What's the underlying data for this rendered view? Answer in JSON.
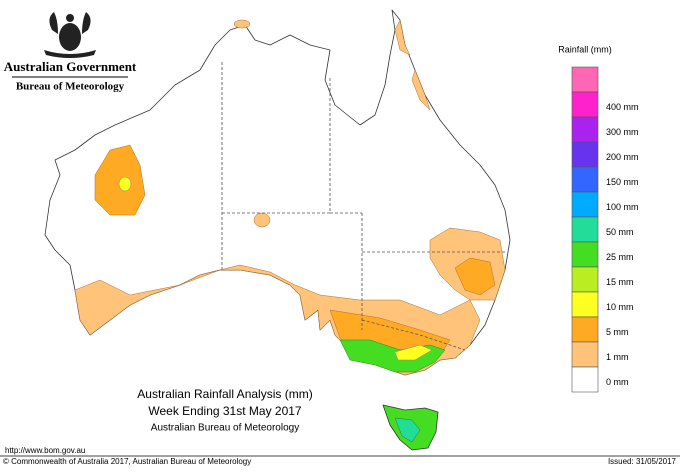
{
  "header": {
    "government": "Australian Government",
    "bureau": "Bureau of Meteorology"
  },
  "legend": {
    "title": "Rainfall (mm)",
    "items": [
      {
        "label": null,
        "color": "#ff66b3"
      },
      {
        "label": "400 mm",
        "color": "#ff22cc"
      },
      {
        "label": "300 mm",
        "color": "#aa22ee"
      },
      {
        "label": "200 mm",
        "color": "#6633ee"
      },
      {
        "label": "150 mm",
        "color": "#3366ff"
      },
      {
        "label": "100 mm",
        "color": "#00aaff"
      },
      {
        "label": "50 mm",
        "color": "#22dd99"
      },
      {
        "label": "25 mm",
        "color": "#44dd22"
      },
      {
        "label": "15 mm",
        "color": "#bbee22"
      },
      {
        "label": "10 mm",
        "color": "#ffff22"
      },
      {
        "label": "5 mm",
        "color": "#ffaa22"
      },
      {
        "label": "1 mm",
        "color": "#ffc37a"
      },
      {
        "label": "0 mm",
        "color": "#ffffff"
      }
    ]
  },
  "map_title": {
    "line1": "Australian Rainfall Analysis (mm)",
    "line2": "Week Ending 31st May 2017",
    "line3": "Australian Bureau of Meteorology"
  },
  "footer": {
    "url": "http://www.bom.gov.au",
    "copyright": "© Commonwealth of Australia 2017, Australian Bureau of Meteorology",
    "issued": "Issued: 31/05/2017"
  }
}
